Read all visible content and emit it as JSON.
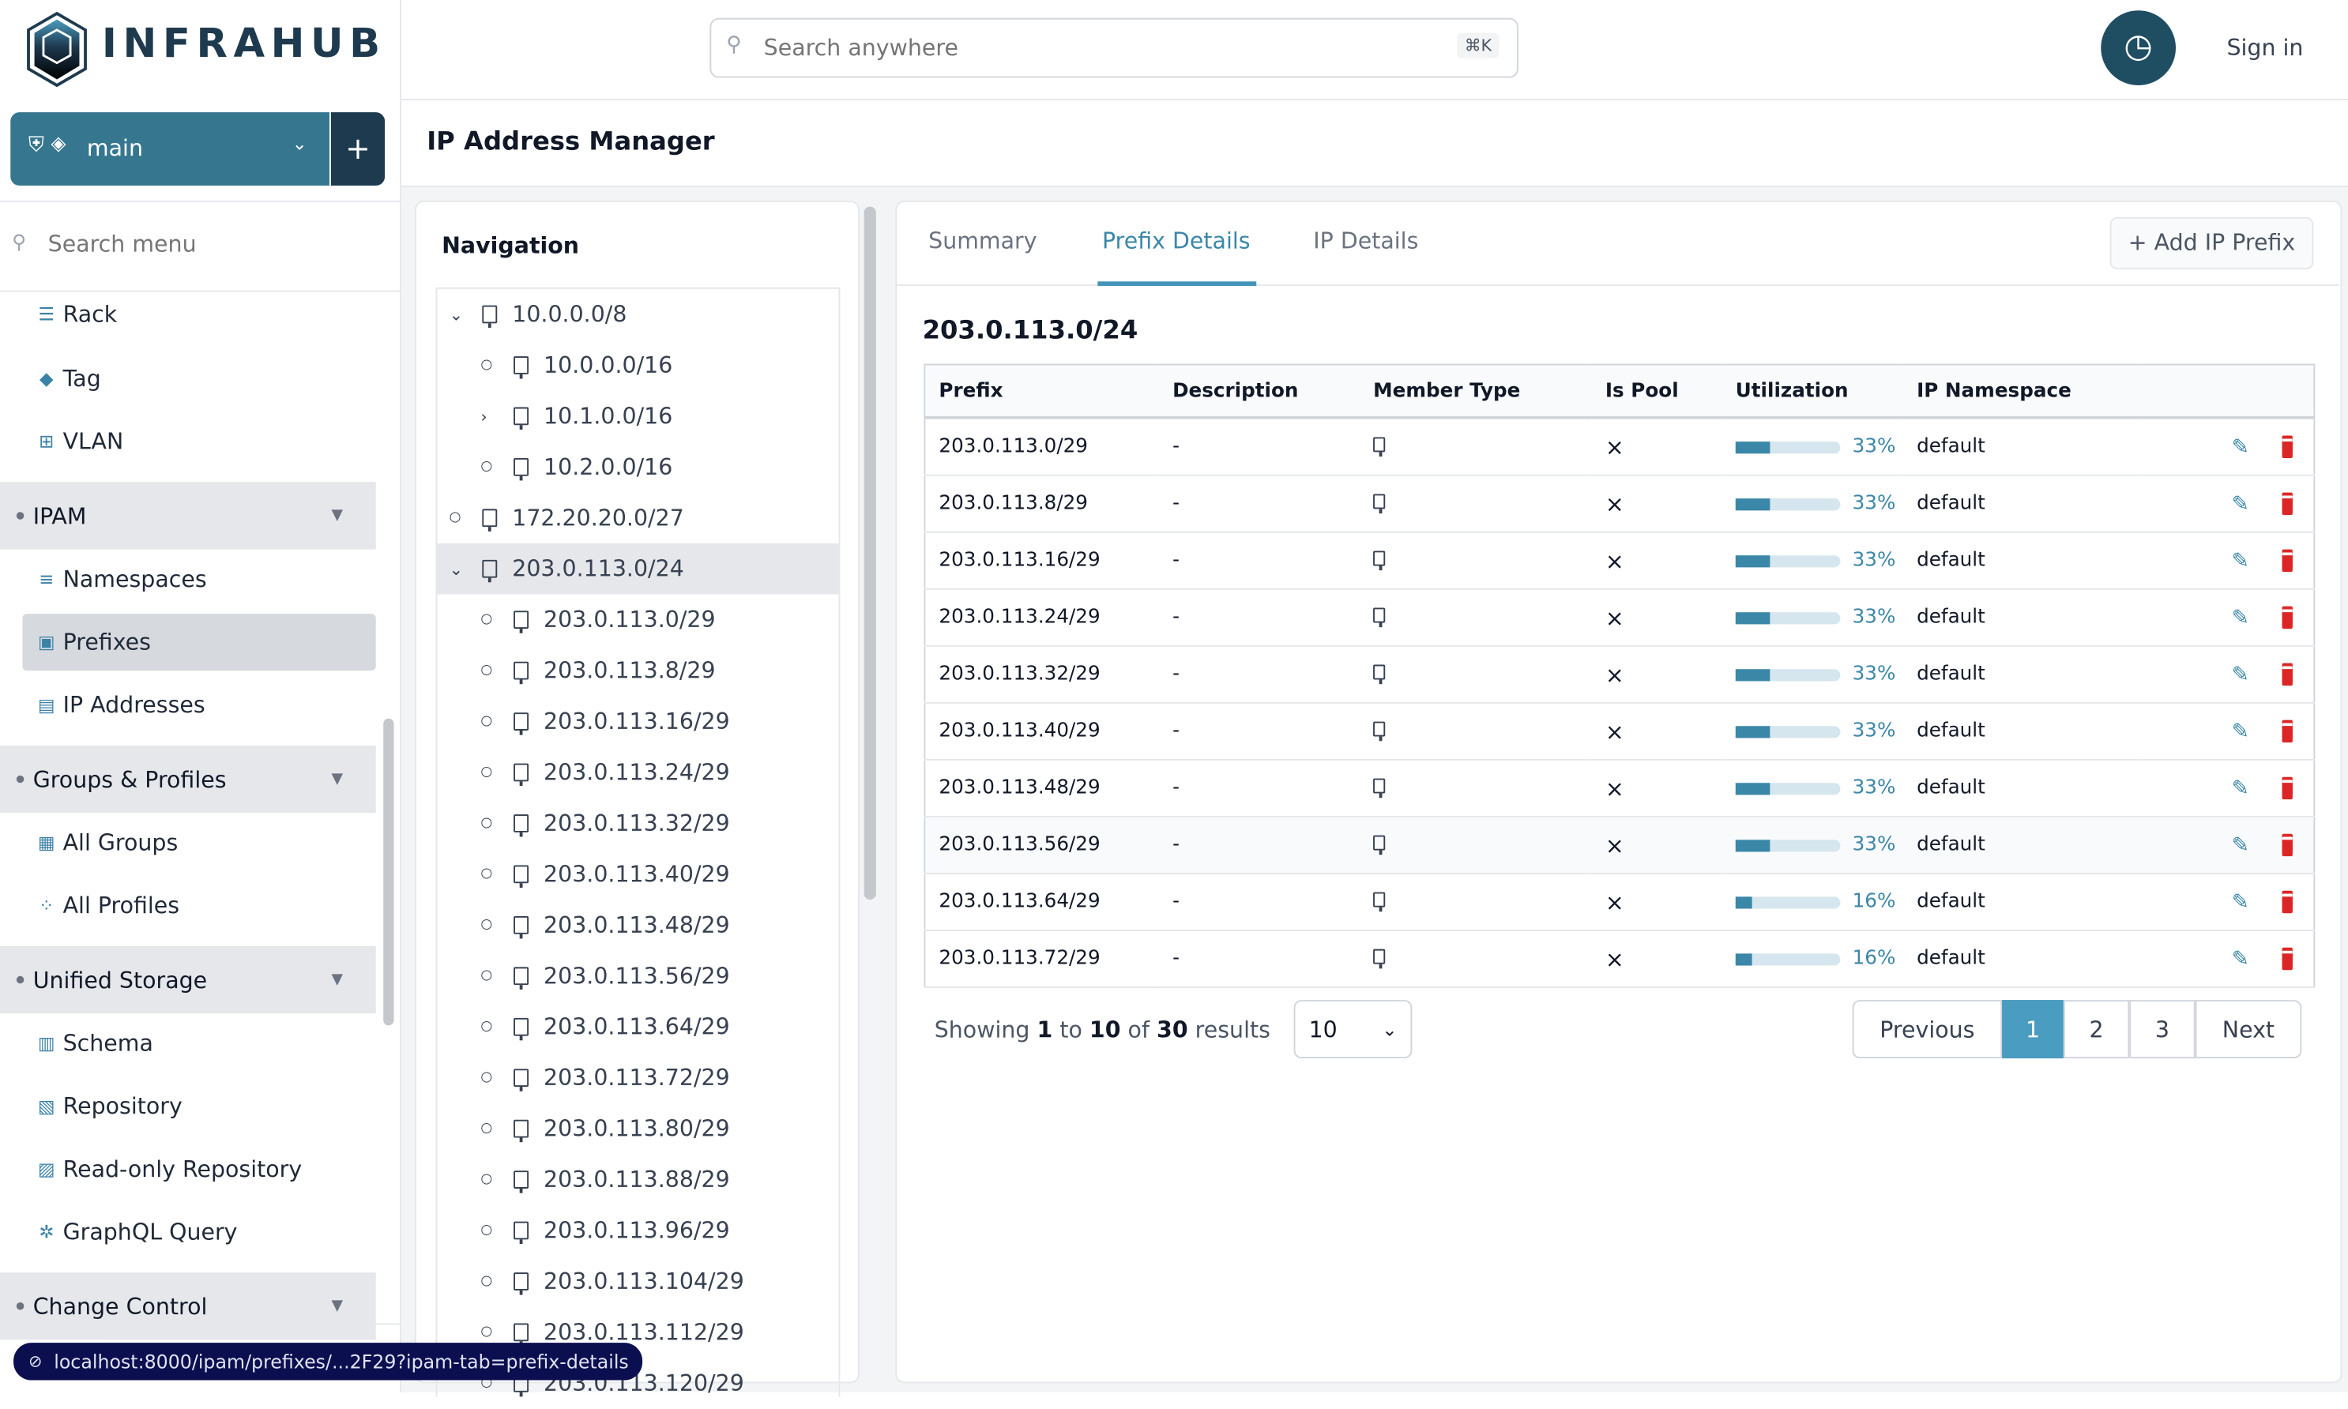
{
  "app": {
    "brand": "INFRAHUB",
    "sign_in": "Sign in"
  },
  "branch": {
    "name": "main",
    "add": "+"
  },
  "search": {
    "placeholder": "Search anywhere",
    "shortcut": "⌘K"
  },
  "sidebar": {
    "search_placeholder": "Search menu",
    "entries": [
      {
        "type": "item",
        "label": "Rack",
        "icon": "rack-icon",
        "glyph": "☰"
      },
      {
        "type": "item",
        "label": "Tag",
        "icon": "tag-icon",
        "glyph": "◆"
      },
      {
        "type": "item",
        "label": "VLAN",
        "icon": "vlan-icon",
        "glyph": "⊞"
      },
      {
        "type": "group",
        "label": "IPAM"
      },
      {
        "type": "item",
        "label": "Namespaces",
        "icon": "namespace-icon",
        "glyph": "≡"
      },
      {
        "type": "item",
        "label": "Prefixes",
        "icon": "prefix-icon",
        "glyph": "▣",
        "selected": true
      },
      {
        "type": "item",
        "label": "IP Addresses",
        "icon": "ip-address-icon",
        "glyph": "▤"
      },
      {
        "type": "group",
        "label": "Groups & Profiles"
      },
      {
        "type": "item",
        "label": "All Groups",
        "icon": "groups-icon",
        "glyph": "▦"
      },
      {
        "type": "item",
        "label": "All Profiles",
        "icon": "profiles-icon",
        "glyph": "⁘"
      },
      {
        "type": "group",
        "label": "Unified Storage"
      },
      {
        "type": "item",
        "label": "Schema",
        "icon": "schema-icon",
        "glyph": "▥"
      },
      {
        "type": "item",
        "label": "Repository",
        "icon": "repository-icon",
        "glyph": "▧"
      },
      {
        "type": "item",
        "label": "Read-only Repository",
        "icon": "readonly-repository-icon",
        "glyph": "▨"
      },
      {
        "type": "item",
        "label": "GraphQL Query",
        "icon": "graphql-icon",
        "glyph": "✲"
      },
      {
        "type": "group",
        "label": "Change Control"
      }
    ]
  },
  "page": {
    "title": "IP Address Manager"
  },
  "navigation": {
    "title": "Navigation",
    "tree": [
      {
        "label": "10.0.0.0/8",
        "level": 0,
        "state": "expanded"
      },
      {
        "label": "10.0.0.0/16",
        "level": 1,
        "state": "leaf"
      },
      {
        "label": "10.1.0.0/16",
        "level": 1,
        "state": "collapsed"
      },
      {
        "label": "10.2.0.0/16",
        "level": 1,
        "state": "leaf"
      },
      {
        "label": "172.20.20.0/27",
        "level": 0,
        "state": "leaf"
      },
      {
        "label": "203.0.113.0/24",
        "level": 0,
        "state": "expanded",
        "selected": true
      },
      {
        "label": "203.0.113.0/29",
        "level": 1,
        "state": "leaf"
      },
      {
        "label": "203.0.113.8/29",
        "level": 1,
        "state": "leaf"
      },
      {
        "label": "203.0.113.16/29",
        "level": 1,
        "state": "leaf"
      },
      {
        "label": "203.0.113.24/29",
        "level": 1,
        "state": "leaf"
      },
      {
        "label": "203.0.113.32/29",
        "level": 1,
        "state": "leaf"
      },
      {
        "label": "203.0.113.40/29",
        "level": 1,
        "state": "leaf"
      },
      {
        "label": "203.0.113.48/29",
        "level": 1,
        "state": "leaf"
      },
      {
        "label": "203.0.113.56/29",
        "level": 1,
        "state": "leaf"
      },
      {
        "label": "203.0.113.64/29",
        "level": 1,
        "state": "leaf"
      },
      {
        "label": "203.0.113.72/29",
        "level": 1,
        "state": "leaf"
      },
      {
        "label": "203.0.113.80/29",
        "level": 1,
        "state": "leaf"
      },
      {
        "label": "203.0.113.88/29",
        "level": 1,
        "state": "leaf"
      },
      {
        "label": "203.0.113.96/29",
        "level": 1,
        "state": "leaf"
      },
      {
        "label": "203.0.113.104/29",
        "level": 1,
        "state": "leaf"
      },
      {
        "label": "203.0.113.112/29",
        "level": 1,
        "state": "leaf"
      },
      {
        "label": "203.0.113.120/29",
        "level": 1,
        "state": "leaf"
      }
    ]
  },
  "tabs": [
    {
      "label": "Summary"
    },
    {
      "label": "Prefix Details",
      "active": true
    },
    {
      "label": "IP Details"
    }
  ],
  "add_button": "+ Add IP Prefix",
  "prefix_title": "203.0.113.0/24",
  "table": {
    "columns": [
      "Prefix",
      "Description",
      "Member Type",
      "Is Pool",
      "Utilization",
      "IP Namespace"
    ],
    "rows": [
      {
        "prefix": "203.0.113.0/29",
        "description": "-",
        "is_pool": "×",
        "utilization": 33,
        "utilization_label": "33%",
        "namespace": "default"
      },
      {
        "prefix": "203.0.113.8/29",
        "description": "-",
        "is_pool": "×",
        "utilization": 33,
        "utilization_label": "33%",
        "namespace": "default"
      },
      {
        "prefix": "203.0.113.16/29",
        "description": "-",
        "is_pool": "×",
        "utilization": 33,
        "utilization_label": "33%",
        "namespace": "default"
      },
      {
        "prefix": "203.0.113.24/29",
        "description": "-",
        "is_pool": "×",
        "utilization": 33,
        "utilization_label": "33%",
        "namespace": "default"
      },
      {
        "prefix": "203.0.113.32/29",
        "description": "-",
        "is_pool": "×",
        "utilization": 33,
        "utilization_label": "33%",
        "namespace": "default"
      },
      {
        "prefix": "203.0.113.40/29",
        "description": "-",
        "is_pool": "×",
        "utilization": 33,
        "utilization_label": "33%",
        "namespace": "default"
      },
      {
        "prefix": "203.0.113.48/29",
        "description": "-",
        "is_pool": "×",
        "utilization": 33,
        "utilization_label": "33%",
        "namespace": "default"
      },
      {
        "prefix": "203.0.113.56/29",
        "description": "-",
        "is_pool": "×",
        "utilization": 33,
        "utilization_label": "33%",
        "namespace": "default",
        "hover": true
      },
      {
        "prefix": "203.0.113.64/29",
        "description": "-",
        "is_pool": "×",
        "utilization": 16,
        "utilization_label": "16%",
        "namespace": "default"
      },
      {
        "prefix": "203.0.113.72/29",
        "description": "-",
        "is_pool": "×",
        "utilization": 16,
        "utilization_label": "16%",
        "namespace": "default"
      }
    ]
  },
  "pagination": {
    "showing_prefix": "Showing",
    "from": "1",
    "to_word": "to",
    "to": "10",
    "of_word": "of",
    "total": "30",
    "results_word": "results",
    "page_size": "10",
    "previous": "Previous",
    "pages": [
      "1",
      "2",
      "3"
    ],
    "current_page": "1",
    "next": "Next"
  },
  "status_url": "localhost:8000/ipam/prefixes/...2F29?ipam-tab=prefix-details",
  "colors": {
    "accent": "#3b87a8",
    "branch": "#36768f",
    "dark": "#1e3a4f",
    "delete": "#dc2626",
    "tooltip": "#0b0e4f"
  }
}
